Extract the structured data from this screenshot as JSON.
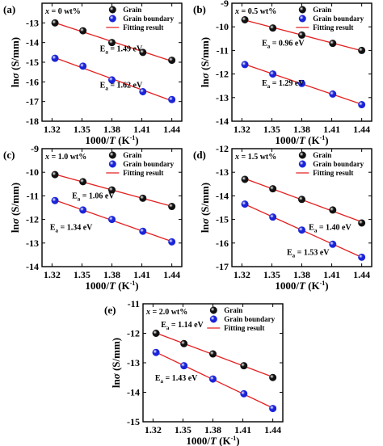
{
  "chart_data": [
    {
      "type": "scatter",
      "panel_label": "(a)",
      "composition": "x = 0 wt%",
      "xlabel": "1000/T (K⁻¹)",
      "ylabel": "lnσ (S/mm)",
      "xlim": [
        1.31,
        1.45
      ],
      "ylim": [
        -18,
        -12
      ],
      "xticks": [
        "1.32",
        "1.35",
        "1.38",
        "1.41",
        "1.44"
      ],
      "yticks": [
        "-13",
        "-14",
        "-15",
        "-16",
        "-17",
        "-18"
      ],
      "legend": {
        "placement": "top-right",
        "entries": [
          "Grain",
          "Grain boundary",
          "Fitting result"
        ]
      },
      "series": [
        {
          "name": "Grain",
          "marker_color": "#111111",
          "x": [
            1.323,
            1.351,
            1.38,
            1.411,
            1.44
          ],
          "y": [
            -13.0,
            -13.4,
            -14.0,
            -14.5,
            -14.9
          ]
        },
        {
          "name": "Grain boundary",
          "marker_color": "#1a24d8",
          "x": [
            1.323,
            1.351,
            1.38,
            1.411,
            1.44
          ],
          "y": [
            -14.8,
            -15.2,
            -15.9,
            -16.5,
            -16.9
          ]
        }
      ],
      "annotations": [
        {
          "text": "Ea = 1.49 eV",
          "x": 1.368,
          "y": -14.45
        },
        {
          "text": "Ea = 1.62 eV",
          "x": 1.368,
          "y": -16.3
        }
      ]
    },
    {
      "type": "scatter",
      "panel_label": "(b)",
      "composition": "x = 0.5 wt%",
      "xlabel": "1000/T (K⁻¹)",
      "ylabel": "lnσ (S/mm)",
      "xlim": [
        1.31,
        1.45
      ],
      "ylim": [
        -14,
        -9
      ],
      "xticks": [
        "1.32",
        "1.35",
        "1.38",
        "1.41",
        "1.44"
      ],
      "yticks": [
        "-9",
        "-10",
        "-11",
        "-12",
        "-13",
        "-14"
      ],
      "legend": {
        "placement": "top-right",
        "entries": [
          "Grain",
          "Grain boundary",
          "Fitting result"
        ]
      },
      "series": [
        {
          "name": "Grain",
          "marker_color": "#111111",
          "x": [
            1.323,
            1.351,
            1.38,
            1.411,
            1.44
          ],
          "y": [
            -9.7,
            -10.05,
            -10.35,
            -10.7,
            -11.0
          ]
        },
        {
          "name": "Grain boundary",
          "marker_color": "#1a24d8",
          "x": [
            1.323,
            1.351,
            1.38,
            1.411,
            1.44
          ],
          "y": [
            -11.6,
            -12.0,
            -12.4,
            -12.85,
            -13.3
          ]
        }
      ],
      "annotations": [
        {
          "text": "Ea = 0.96 eV",
          "x": 1.34,
          "y": -10.8
        },
        {
          "text": "Ea = 1.29 eV",
          "x": 1.34,
          "y": -12.5
        }
      ]
    },
    {
      "type": "scatter",
      "panel_label": "(c)",
      "composition": "x = 1.0 wt%",
      "xlabel": "1000/T (K⁻¹)",
      "ylabel": "lnσ (S/mm)",
      "xlim": [
        1.31,
        1.45
      ],
      "ylim": [
        -14,
        -9
      ],
      "xticks": [
        "1.32",
        "1.35",
        "1.38",
        "1.41",
        "1.44"
      ],
      "yticks": [
        "-9",
        "-10",
        "-11",
        "-12",
        "-13",
        "-14"
      ],
      "legend": {
        "placement": "top-right",
        "entries": [
          "Grain",
          "Grain boundary",
          "Fitting result"
        ]
      },
      "series": [
        {
          "name": "Grain",
          "marker_color": "#111111",
          "x": [
            1.323,
            1.351,
            1.38,
            1.411,
            1.44
          ],
          "y": [
            -10.1,
            -10.4,
            -10.75,
            -11.1,
            -11.45
          ]
        },
        {
          "name": "Grain boundary",
          "marker_color": "#1a24d8",
          "x": [
            1.323,
            1.351,
            1.38,
            1.411,
            1.44
          ],
          "y": [
            -11.2,
            -11.6,
            -12.0,
            -12.5,
            -12.95
          ]
        }
      ],
      "annotations": [
        {
          "text": "Ea = 1.06 eV",
          "x": 1.34,
          "y": -11.1
        },
        {
          "text": "Ea = 1.34 eV",
          "x": 1.318,
          "y": -12.45
        }
      ]
    },
    {
      "type": "scatter",
      "panel_label": "(d)",
      "composition": "x = 1.5 wt%",
      "xlabel": "1000/T (K⁻¹)",
      "ylabel": "lnσ (S/mm)",
      "xlim": [
        1.31,
        1.45
      ],
      "ylim": [
        -17,
        -12
      ],
      "xticks": [
        "1.32",
        "1.35",
        "1.38",
        "1.41",
        "1.44"
      ],
      "yticks": [
        "-12",
        "-13",
        "-14",
        "-15",
        "-16",
        "-17"
      ],
      "legend": {
        "placement": "top-right",
        "entries": [
          "Grain",
          "Grain boundary",
          "Fitting result"
        ]
      },
      "series": [
        {
          "name": "Grain",
          "marker_color": "#111111",
          "x": [
            1.323,
            1.351,
            1.38,
            1.411,
            1.44
          ],
          "y": [
            -13.3,
            -13.7,
            -14.15,
            -14.6,
            -15.15
          ]
        },
        {
          "name": "Grain boundary",
          "marker_color": "#1a24d8",
          "x": [
            1.323,
            1.351,
            1.38,
            1.411,
            1.44
          ],
          "y": [
            -14.35,
            -14.9,
            -15.45,
            -16.05,
            -16.6
          ]
        }
      ],
      "annotations": [
        {
          "text": "Ea = 1.40 eV",
          "x": 1.387,
          "y": -15.45
        },
        {
          "text": "Ea = 1.53 eV",
          "x": 1.365,
          "y": -16.5
        }
      ]
    },
    {
      "type": "scatter",
      "panel_label": "(e)",
      "composition": "x = 2.0 wt%",
      "xlabel": "1000/T (K⁻¹)",
      "ylabel": "lnσ (S/mm)",
      "xlim": [
        1.31,
        1.45
      ],
      "ylim": [
        -15,
        -11
      ],
      "xticks": [
        "1.32",
        "1.35",
        "1.38",
        "1.41",
        "1.44"
      ],
      "yticks": [
        "-11",
        "-12",
        "-13",
        "-14",
        "-15"
      ],
      "legend": {
        "placement": "top-right",
        "entries": [
          "Grain",
          "Grain boundary",
          "Fitting result"
        ]
      },
      "series": [
        {
          "name": "Grain",
          "marker_color": "#111111",
          "x": [
            1.323,
            1.351,
            1.38,
            1.411,
            1.44
          ],
          "y": [
            -12.0,
            -12.35,
            -12.7,
            -13.1,
            -13.5
          ]
        },
        {
          "name": "Grain boundary",
          "marker_color": "#1a24d8",
          "x": [
            1.323,
            1.351,
            1.38,
            1.411,
            1.44
          ],
          "y": [
            -12.65,
            -13.1,
            -13.55,
            -14.05,
            -14.55
          ]
        }
      ],
      "annotations": [
        {
          "text": "Ea = 1.14 eV",
          "x": 1.328,
          "y": -11.8
        },
        {
          "text": "Ea = 1.43 eV",
          "x": 1.322,
          "y": -13.6
        }
      ]
    }
  ],
  "colors": {
    "grain": "#111111",
    "grain_boundary": "#1a24d8",
    "fit_line": "#e32020",
    "axes": "#000000"
  }
}
